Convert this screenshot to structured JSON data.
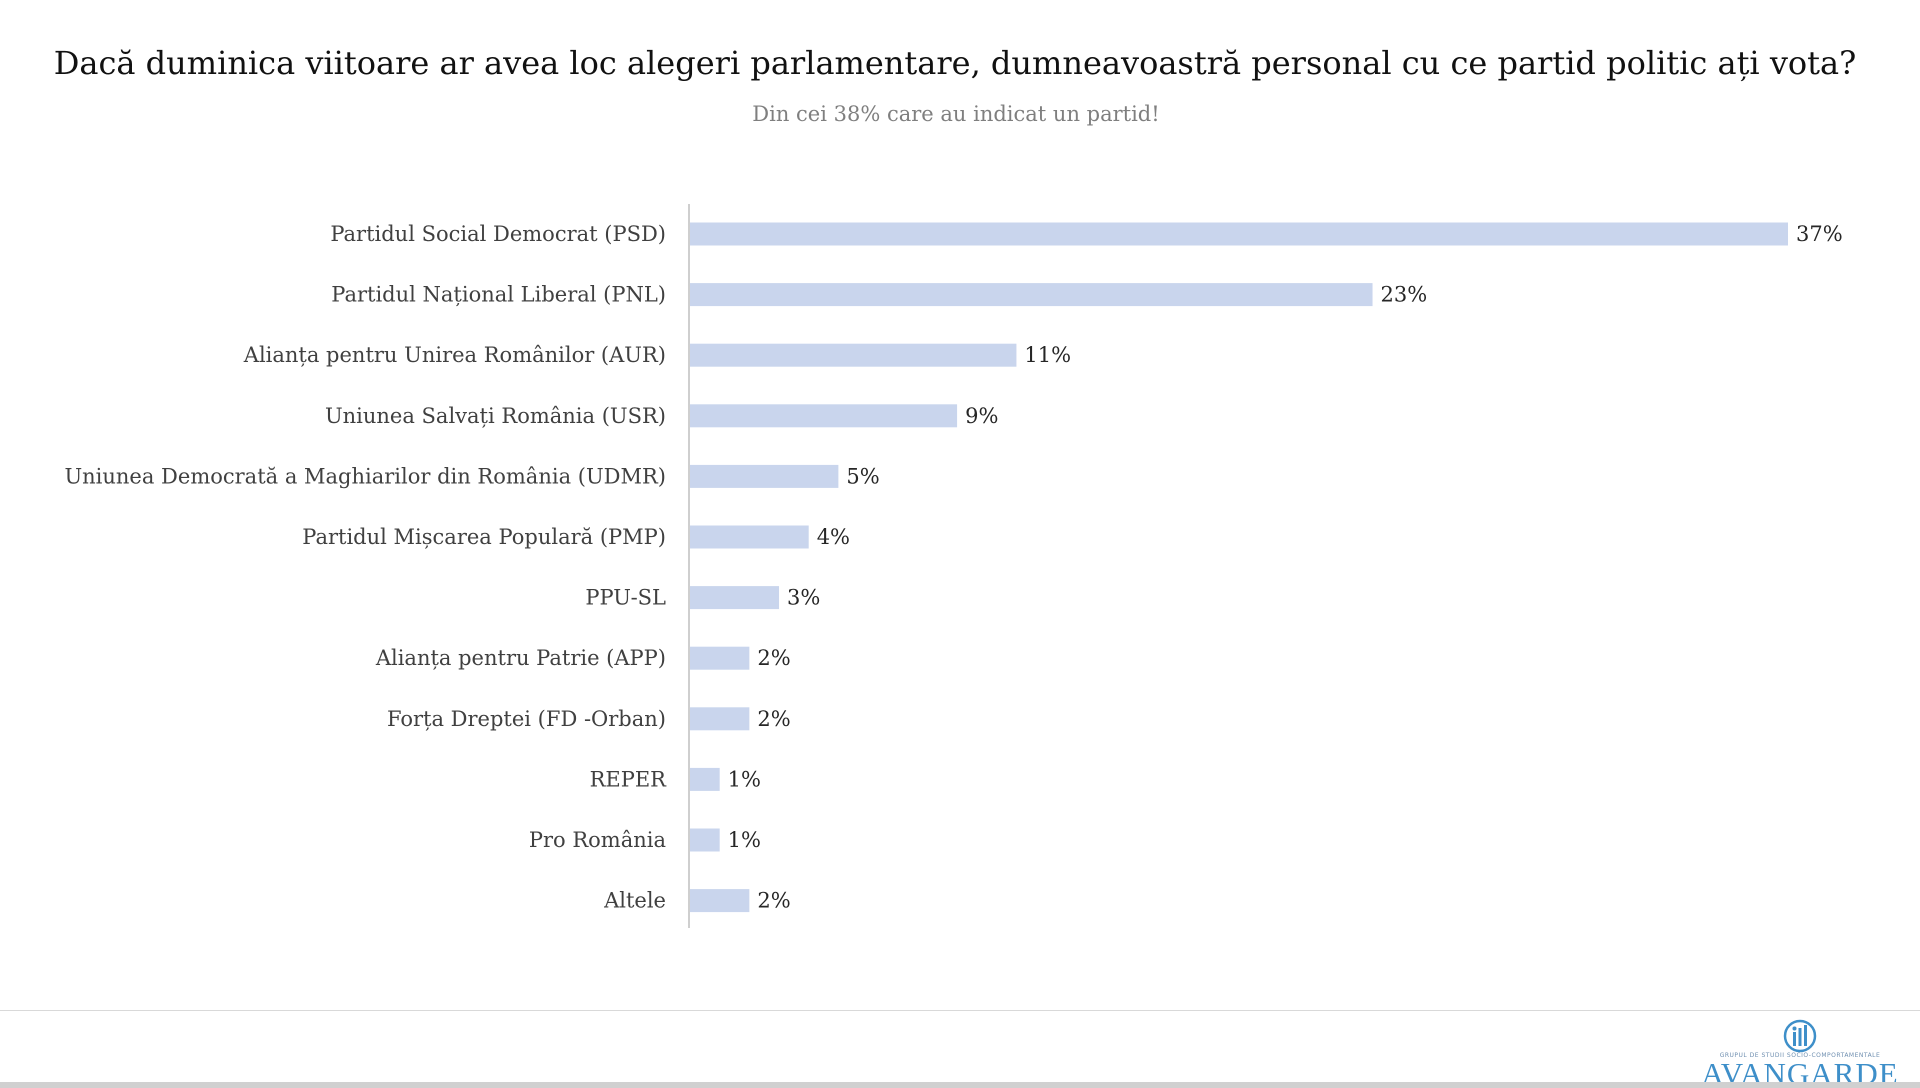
{
  "header": {
    "title": "Dacă duminica viitoare ar avea loc alegeri parlamentare, dumneavoastră personal cu ce partid politic ați vota?",
    "subtitle": "Din cei 38% care au indicat un partid!"
  },
  "chart_data": {
    "type": "bar",
    "orientation": "horizontal",
    "title": "Dacă duminica viitoare ar avea loc alegeri parlamentare, dumneavoastră personal cu ce partid politic ați vota?",
    "subtitle": "Din cei 38% care au indicat un partid!",
    "categories": [
      "Partidul Social Democrat (PSD)",
      "Partidul Național Liberal (PNL)",
      "Alianța pentru Unirea Românilor (AUR)",
      "Uniunea Salvați România (USR)",
      "Uniunea Democrată a Maghiarilor din România (UDMR)",
      "Partidul Mișcarea Populară (PMP)",
      "PPU-SL",
      "Alianța pentru Patrie (APP)",
      "Forța Dreptei (FD -Orban)",
      "REPER",
      "Pro România",
      "Altele"
    ],
    "values": [
      37,
      23,
      11,
      9,
      5,
      4,
      3,
      2,
      2,
      1,
      1,
      2
    ],
    "value_labels": [
      "37%",
      "23%",
      "11%",
      "9%",
      "5%",
      "4%",
      "3%",
      "2%",
      "2%",
      "1%",
      "1%",
      "2%"
    ],
    "unit": "%",
    "xlim": [
      0,
      37
    ],
    "bar_color": "#c9d5ed",
    "axis_color": "#bfbfbf",
    "grid": false,
    "legend": "none"
  },
  "logo": {
    "tagline": "GRUPUL DE STUDII SOCIO-COMPORTAMENTALE",
    "name": "AVANGARDE",
    "color": "#3e8fc9"
  }
}
